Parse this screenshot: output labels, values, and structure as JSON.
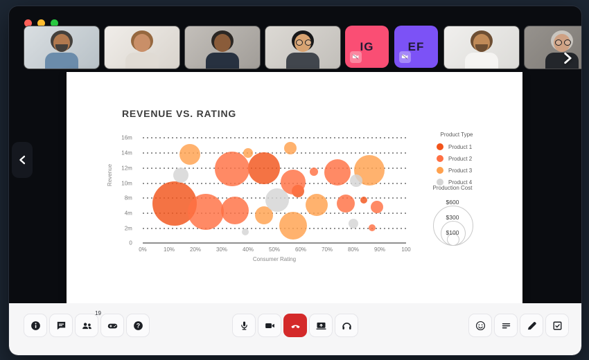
{
  "window": {
    "traffic_lights": [
      "#FF5F57",
      "#FEBC2E",
      "#28C840"
    ]
  },
  "participants": {
    "tiles": [
      {
        "type": "video",
        "person": "man-beard-blue-shirt",
        "palette": {
          "bg1": "#d9dee1",
          "bg2": "#b8c1c7",
          "skin": "#b1794f",
          "hair": "#44403c",
          "shirt": "#6b8cab",
          "beard": true,
          "glasses": false
        }
      },
      {
        "type": "video",
        "person": "woman-long-hair",
        "palette": {
          "bg1": "#f0ede9",
          "bg2": "#d9d4cd",
          "skin": "#c98f68",
          "hair": "#96683f",
          "shirt": "#e0dbd4",
          "beard": false,
          "glasses": false
        }
      },
      {
        "type": "video",
        "person": "person-curly-hair-navy-top",
        "palette": {
          "bg1": "#c3bfba",
          "bg2": "#a19d98",
          "skin": "#8a5c3a",
          "hair": "#2b2724",
          "shirt": "#273140",
          "beard": false,
          "glasses": false
        }
      },
      {
        "type": "video",
        "person": "man-glasses-dark-hair",
        "palette": {
          "bg1": "#dcd9d4",
          "bg2": "#c2bfba",
          "skin": "#d8a371",
          "hair": "#17181a",
          "shirt": "#41464d",
          "beard": false,
          "glasses": true
        }
      },
      {
        "type": "initials",
        "text": "IG",
        "bg": "#FA4E74",
        "camera_off": true
      },
      {
        "type": "initials",
        "text": "EF",
        "bg": "#7C52F6",
        "camera_off": true
      },
      {
        "type": "video",
        "person": "man-beard-white-tee",
        "palette": {
          "bg1": "#f0efed",
          "bg2": "#dcdbd8",
          "skin": "#c08a58",
          "hair": "#6d4e33",
          "shirt": "#f5f4f2",
          "beard": true,
          "glasses": false
        }
      },
      {
        "type": "video",
        "person": "woman-gray-hair-glasses",
        "palette": {
          "bg1": "#96928d",
          "bg2": "#7b7772",
          "skin": "#cfa183",
          "hair": "#c9c5bf",
          "shirt": "#23262b",
          "beard": false,
          "glasses": true
        }
      }
    ]
  },
  "chart_data": {
    "type": "scatter",
    "variant": "bubble",
    "title": "REVENUE VS. RATING",
    "xlabel": "Consumer Rating",
    "ylabel": "Revenue",
    "xlim": [
      0,
      100
    ],
    "ylim": [
      0,
      16
    ],
    "x_ticks": [
      "0%",
      "10%",
      "20%",
      "30%",
      "40%",
      "50%",
      "60%",
      "70%",
      "80%",
      "90%",
      "100"
    ],
    "y_ticks": [
      "16m",
      "14m",
      "12m",
      "10m",
      "8m",
      "4m",
      "2m"
    ],
    "y_zero_label": "0",
    "grid": "dotted-horizontal",
    "size_encoding": "production_cost_dollars",
    "series": [
      {
        "name": "Product 1",
        "color": "#F2541B",
        "points": [
          {
            "x": 12,
            "y": 6.0,
            "r": 32,
            "cost": 600
          },
          {
            "x": 46,
            "y": 11.3,
            "r": 23,
            "cost": 310
          },
          {
            "x": 59,
            "y": 7.8,
            "r": 9,
            "cost": 100
          },
          {
            "x": 84,
            "y": 6.5,
            "r": 5,
            "cost": 100
          }
        ]
      },
      {
        "name": "Product 2",
        "color": "#FF7043",
        "points": [
          {
            "x": 24,
            "y": 4.7,
            "r": 26,
            "cost": 400
          },
          {
            "x": 34,
            "y": 11.2,
            "r": 25,
            "cost": 370
          },
          {
            "x": 35,
            "y": 4.9,
            "r": 20,
            "cost": 240
          },
          {
            "x": 57,
            "y": 9.2,
            "r": 18,
            "cost": 190
          },
          {
            "x": 65,
            "y": 10.8,
            "r": 6,
            "cost": 100
          },
          {
            "x": 74,
            "y": 10.7,
            "r": 19,
            "cost": 210
          },
          {
            "x": 77,
            "y": 6.0,
            "r": 13,
            "cost": 100
          },
          {
            "x": 89,
            "y": 5.4,
            "r": 9,
            "cost": 100
          },
          {
            "x": 87,
            "y": 2.3,
            "r": 5,
            "cost": 100
          }
        ]
      },
      {
        "name": "Product 3",
        "color": "#FFA14E",
        "points": [
          {
            "x": 18,
            "y": 13.4,
            "r": 15,
            "cost": 130
          },
          {
            "x": 40,
            "y": 13.6,
            "r": 7,
            "cost": 100
          },
          {
            "x": 56,
            "y": 14.3,
            "r": 9,
            "cost": 100
          },
          {
            "x": 46,
            "y": 4.2,
            "r": 13,
            "cost": 100
          },
          {
            "x": 66,
            "y": 5.8,
            "r": 16,
            "cost": 150
          },
          {
            "x": 86,
            "y": 11.0,
            "r": 22,
            "cost": 280
          },
          {
            "x": 57,
            "y": 2.6,
            "r": 20,
            "cost": 240
          }
        ]
      },
      {
        "name": "Product 4",
        "color": "#D4D4D4",
        "points": [
          {
            "x": 14.5,
            "y": 10.2,
            "r": 11,
            "cost": 100
          },
          {
            "x": 39,
            "y": 1.7,
            "r": 5,
            "cost": 100
          },
          {
            "x": 51,
            "y": 6.5,
            "r": 17,
            "cost": 170
          },
          {
            "x": 81,
            "y": 9.4,
            "r": 9,
            "cost": 100
          },
          {
            "x": 80,
            "y": 2.9,
            "r": 7,
            "cost": 100
          }
        ]
      }
    ],
    "legend": {
      "title": "Product Type",
      "position": "right",
      "items": [
        {
          "label": "Product 1",
          "color": "#F2541B"
        },
        {
          "label": "Product 2",
          "color": "#FF7043"
        },
        {
          "label": "Product 3",
          "color": "#FFA14E"
        },
        {
          "label": "Product 4",
          "color": "#D4D4D4"
        }
      ],
      "size_legend": {
        "title": "Production Cost",
        "values": [
          "$600",
          "$300",
          "$100"
        ]
      }
    }
  },
  "toolbar": {
    "left": [
      {
        "icon": "info"
      },
      {
        "icon": "chat"
      },
      {
        "icon": "participants",
        "badge": "19"
      },
      {
        "icon": "controller"
      },
      {
        "icon": "help"
      }
    ],
    "center": [
      {
        "icon": "microphone"
      },
      {
        "icon": "camera"
      },
      {
        "icon": "end-call",
        "bg": "#D42A2A"
      },
      {
        "icon": "share-screen"
      },
      {
        "icon": "headphones"
      }
    ],
    "right": [
      {
        "icon": "emoji"
      },
      {
        "icon": "notes"
      },
      {
        "icon": "edit"
      },
      {
        "icon": "tasks"
      }
    ]
  }
}
